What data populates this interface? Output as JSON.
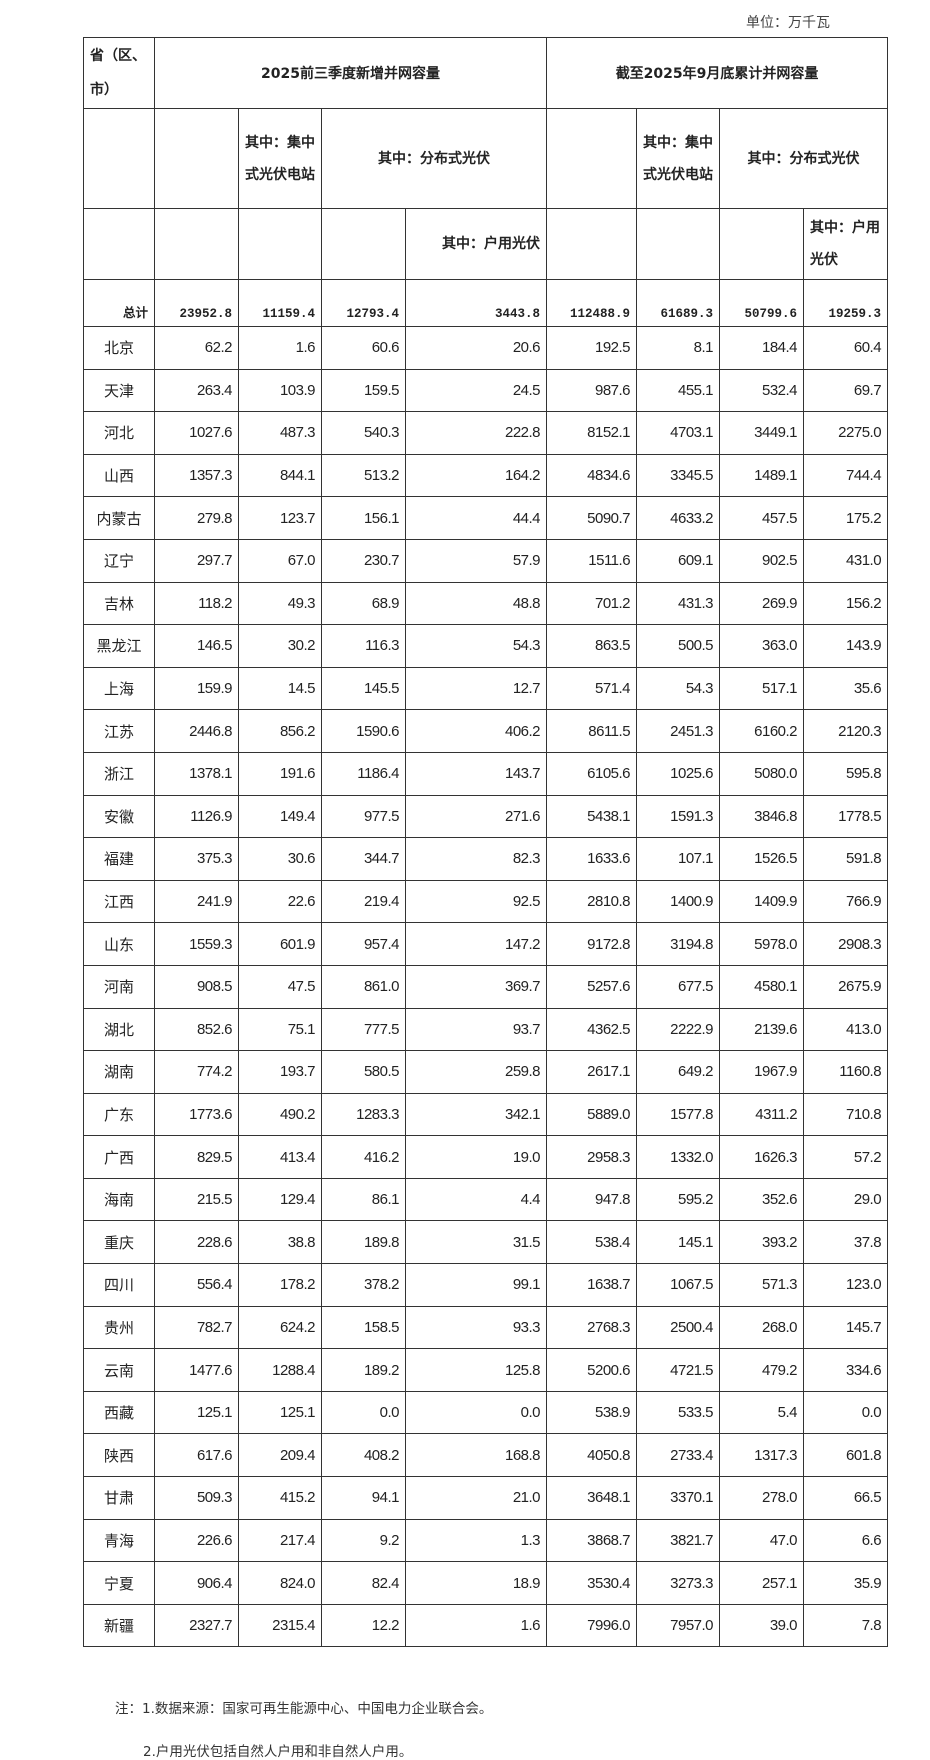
{
  "unit_label": "单位：万千瓦",
  "header": {
    "province": "省（区、市）",
    "group1": "2025前三季度新增并网容量",
    "group2": "截至2025年9月底累计并网容量",
    "centralized": "其中：集中式光伏电站",
    "distributed": "其中：分布式光伏",
    "household": "其中：户用光伏"
  },
  "total": {
    "label": "总计",
    "values": [
      "23952.8",
      "11159.4",
      "12793.4",
      "3443.8",
      "112488.9",
      "61689.3",
      "50799.6",
      "19259.3"
    ]
  },
  "rows": [
    {
      "name": "北京",
      "values": [
        "62.2",
        "1.6",
        "60.6",
        "20.6",
        "192.5",
        "8.1",
        "184.4",
        "60.4"
      ]
    },
    {
      "name": "天津",
      "values": [
        "263.4",
        "103.9",
        "159.5",
        "24.5",
        "987.6",
        "455.1",
        "532.4",
        "69.7"
      ]
    },
    {
      "name": "河北",
      "values": [
        "1027.6",
        "487.3",
        "540.3",
        "222.8",
        "8152.1",
        "4703.1",
        "3449.1",
        "2275.0"
      ]
    },
    {
      "name": "山西",
      "values": [
        "1357.3",
        "844.1",
        "513.2",
        "164.2",
        "4834.6",
        "3345.5",
        "1489.1",
        "744.4"
      ]
    },
    {
      "name": "内蒙古",
      "values": [
        "279.8",
        "123.7",
        "156.1",
        "44.4",
        "5090.7",
        "4633.2",
        "457.5",
        "175.2"
      ]
    },
    {
      "name": "辽宁",
      "values": [
        "297.7",
        "67.0",
        "230.7",
        "57.9",
        "1511.6",
        "609.1",
        "902.5",
        "431.0"
      ]
    },
    {
      "name": "吉林",
      "values": [
        "118.2",
        "49.3",
        "68.9",
        "48.8",
        "701.2",
        "431.3",
        "269.9",
        "156.2"
      ]
    },
    {
      "name": "黑龙江",
      "values": [
        "146.5",
        "30.2",
        "116.3",
        "54.3",
        "863.5",
        "500.5",
        "363.0",
        "143.9"
      ]
    },
    {
      "name": "上海",
      "values": [
        "159.9",
        "14.5",
        "145.5",
        "12.7",
        "571.4",
        "54.3",
        "517.1",
        "35.6"
      ]
    },
    {
      "name": "江苏",
      "values": [
        "2446.8",
        "856.2",
        "1590.6",
        "406.2",
        "8611.5",
        "2451.3",
        "6160.2",
        "2120.3"
      ]
    },
    {
      "name": "浙江",
      "values": [
        "1378.1",
        "191.6",
        "1186.4",
        "143.7",
        "6105.6",
        "1025.6",
        "5080.0",
        "595.8"
      ]
    },
    {
      "name": "安徽",
      "values": [
        "1126.9",
        "149.4",
        "977.5",
        "271.6",
        "5438.1",
        "1591.3",
        "3846.8",
        "1778.5"
      ]
    },
    {
      "name": "福建",
      "values": [
        "375.3",
        "30.6",
        "344.7",
        "82.3",
        "1633.6",
        "107.1",
        "1526.5",
        "591.8"
      ]
    },
    {
      "name": "江西",
      "values": [
        "241.9",
        "22.6",
        "219.4",
        "92.5",
        "2810.8",
        "1400.9",
        "1409.9",
        "766.9"
      ]
    },
    {
      "name": "山东",
      "values": [
        "1559.3",
        "601.9",
        "957.4",
        "147.2",
        "9172.8",
        "3194.8",
        "5978.0",
        "2908.3"
      ]
    },
    {
      "name": "河南",
      "values": [
        "908.5",
        "47.5",
        "861.0",
        "369.7",
        "5257.6",
        "677.5",
        "4580.1",
        "2675.9"
      ]
    },
    {
      "name": "湖北",
      "values": [
        "852.6",
        "75.1",
        "777.5",
        "93.7",
        "4362.5",
        "2222.9",
        "2139.6",
        "413.0"
      ]
    },
    {
      "name": "湖南",
      "values": [
        "774.2",
        "193.7",
        "580.5",
        "259.8",
        "2617.1",
        "649.2",
        "1967.9",
        "1160.8"
      ]
    },
    {
      "name": "广东",
      "values": [
        "1773.6",
        "490.2",
        "1283.3",
        "342.1",
        "5889.0",
        "1577.8",
        "4311.2",
        "710.8"
      ]
    },
    {
      "name": "广西",
      "values": [
        "829.5",
        "413.4",
        "416.2",
        "19.0",
        "2958.3",
        "1332.0",
        "1626.3",
        "57.2"
      ]
    },
    {
      "name": "海南",
      "values": [
        "215.5",
        "129.4",
        "86.1",
        "4.4",
        "947.8",
        "595.2",
        "352.6",
        "29.0"
      ]
    },
    {
      "name": "重庆",
      "values": [
        "228.6",
        "38.8",
        "189.8",
        "31.5",
        "538.4",
        "145.1",
        "393.2",
        "37.8"
      ]
    },
    {
      "name": "四川",
      "values": [
        "556.4",
        "178.2",
        "378.2",
        "99.1",
        "1638.7",
        "1067.5",
        "571.3",
        "123.0"
      ]
    },
    {
      "name": "贵州",
      "values": [
        "782.7",
        "624.2",
        "158.5",
        "93.3",
        "2768.3",
        "2500.4",
        "268.0",
        "145.7"
      ]
    },
    {
      "name": "云南",
      "values": [
        "1477.6",
        "1288.4",
        "189.2",
        "125.8",
        "5200.6",
        "4721.5",
        "479.2",
        "334.6"
      ]
    },
    {
      "name": "西藏",
      "values": [
        "125.1",
        "125.1",
        "0.0",
        "0.0",
        "538.9",
        "533.5",
        "5.4",
        "0.0"
      ]
    },
    {
      "name": "陕西",
      "values": [
        "617.6",
        "209.4",
        "408.2",
        "168.8",
        "4050.8",
        "2733.4",
        "1317.3",
        "601.8"
      ]
    },
    {
      "name": "甘肃",
      "values": [
        "509.3",
        "415.2",
        "94.1",
        "21.0",
        "3648.1",
        "3370.1",
        "278.0",
        "66.5"
      ]
    },
    {
      "name": "青海",
      "values": [
        "226.6",
        "217.4",
        "9.2",
        "1.3",
        "3868.7",
        "3821.7",
        "47.0",
        "6.6"
      ]
    },
    {
      "name": "宁夏",
      "values": [
        "906.4",
        "824.0",
        "82.4",
        "18.9",
        "3530.4",
        "3273.3",
        "257.1",
        "35.9"
      ]
    },
    {
      "name": "新疆",
      "values": [
        "2327.7",
        "2315.4",
        "12.2",
        "1.6",
        "7996.0",
        "7957.0",
        "39.0",
        "7.8"
      ]
    }
  ],
  "notes": [
    "注：1.数据来源：国家可再生能源中心、中国电力企业联合会。",
    "2.户用光伏包括自然人户用和非自然人户用。"
  ]
}
